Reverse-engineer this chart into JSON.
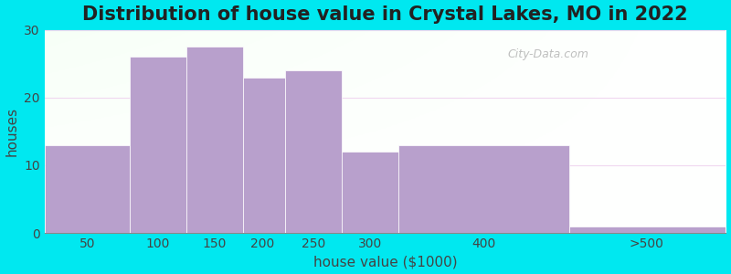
{
  "title": "Distribution of house value in Crystal Lakes, MO in 2022",
  "xlabel": "house value ($1000)",
  "ylabel": "houses",
  "categories": [
    "50",
    "100",
    "150",
    "200",
    "250",
    "300",
    "400",
    ">500"
  ],
  "bin_edges": [
    0,
    75,
    125,
    175,
    212,
    262,
    312,
    462,
    600
  ],
  "values": [
    13,
    26,
    27.5,
    23,
    24,
    12,
    13,
    1
  ],
  "bar_color": "#b8a0cc",
  "ylim": [
    0,
    30
  ],
  "yticks": [
    0,
    10,
    20,
    30
  ],
  "xtick_positions": [
    37.5,
    100,
    150,
    192,
    237,
    287,
    387,
    530
  ],
  "background_outer": "#00e8f0",
  "title_fontsize": 15,
  "axis_label_fontsize": 11,
  "tick_fontsize": 10,
  "watermark_text": "City-Data.com",
  "grid_color": "#e8d8e8"
}
